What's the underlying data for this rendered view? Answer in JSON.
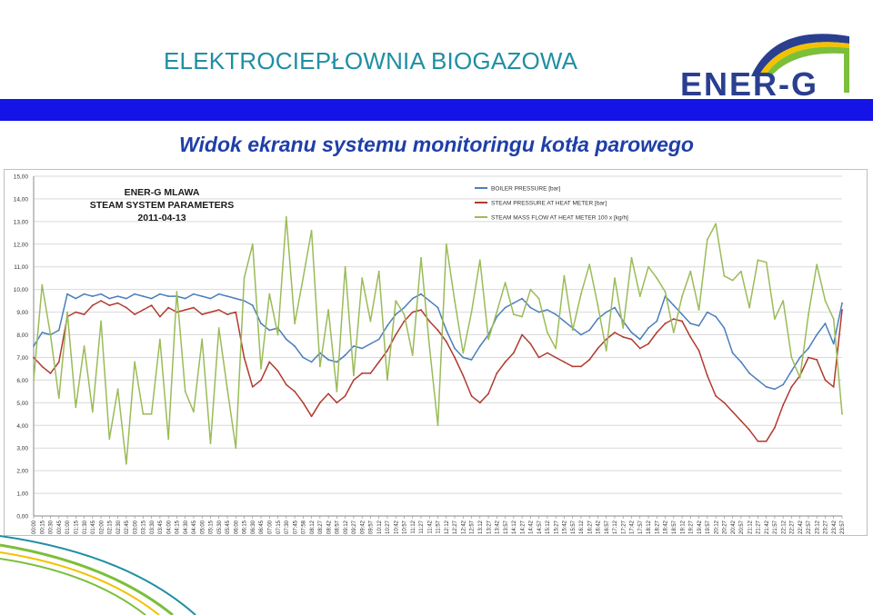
{
  "header": {
    "title": "ELEKTROCIEPŁOWNIA BIOGAZOWA"
  },
  "logo": {
    "text": "ENER-G",
    "arc_colors": [
      "#2a3f8f",
      "#f2c200",
      "#7bbf3a"
    ]
  },
  "subtitle": "Widok ekranu systemu monitoringu kotła parowego",
  "colors": {
    "blue_bar": "#1414e6",
    "series_blue": "#4a7ebb",
    "series_red": "#b03a2e",
    "series_green": "#9bbb59"
  },
  "chart_data": {
    "type": "line",
    "annotation": [
      "ENER-G MLAWA",
      "STEAM SYSTEM PARAMETERS",
      "2011-04-13"
    ],
    "ylim": [
      0,
      15
    ],
    "yticks": [
      "0,00",
      "1,00",
      "2,00",
      "3,00",
      "4,00",
      "5,00",
      "6,00",
      "7,00",
      "8,00",
      "9,00",
      "10,00",
      "11,00",
      "12,00",
      "13,00",
      "14,00",
      "15,00"
    ],
    "legend_position": "top-right",
    "grid": "horizontal",
    "categories": [
      "00:00",
      "00:15",
      "00:30",
      "00:45",
      "01:00",
      "01:15",
      "01:30",
      "01:45",
      "02:00",
      "02:15",
      "02:30",
      "02:45",
      "03:00",
      "03:15",
      "03:30",
      "03:45",
      "04:00",
      "04:15",
      "04:30",
      "04:45",
      "05:00",
      "05:15",
      "05:30",
      "05:45",
      "06:00",
      "06:15",
      "06:30",
      "06:45",
      "07:00",
      "07:15",
      "07:30",
      "07:45",
      "07:58",
      "08:12",
      "08:27",
      "08:42",
      "08:57",
      "09:12",
      "09:27",
      "09:42",
      "09:57",
      "10:12",
      "10:27",
      "10:42",
      "10:57",
      "11:12",
      "11:27",
      "11:42",
      "11:57",
      "12:12",
      "12:27",
      "12:42",
      "12:57",
      "13:12",
      "13:27",
      "13:42",
      "13:57",
      "14:12",
      "14:27",
      "14:42",
      "14:57",
      "15:12",
      "15:27",
      "15:42",
      "15:57",
      "16:12",
      "16:27",
      "16:42",
      "16:57",
      "17:12",
      "17:27",
      "17:42",
      "17:57",
      "18:12",
      "18:27",
      "18:42",
      "18:57",
      "19:12",
      "19:27",
      "19:42",
      "19:57",
      "20:12",
      "20:27",
      "20:42",
      "20:57",
      "21:12",
      "21:27",
      "21:42",
      "21:57",
      "22:12",
      "22:27",
      "22:42",
      "22:57",
      "23:12",
      "23:27",
      "23:42",
      "23:57"
    ],
    "series": [
      {
        "name": "BOILER PRESSURE [bar]",
        "color": "#4a7ebb",
        "values": [
          7.5,
          8.1,
          8.0,
          8.2,
          9.8,
          9.6,
          9.8,
          9.7,
          9.8,
          9.6,
          9.7,
          9.6,
          9.8,
          9.7,
          9.6,
          9.8,
          9.7,
          9.7,
          9.6,
          9.8,
          9.7,
          9.6,
          9.8,
          9.7,
          9.6,
          9.5,
          9.3,
          8.5,
          8.2,
          8.3,
          7.8,
          7.5,
          7.0,
          6.8,
          7.2,
          6.9,
          6.8,
          7.1,
          7.5,
          7.4,
          7.6,
          7.8,
          8.4,
          8.9,
          9.2,
          9.6,
          9.8,
          9.5,
          9.2,
          8.2,
          7.4,
          7.0,
          6.9,
          7.5,
          8.0,
          8.8,
          9.2,
          9.4,
          9.6,
          9.2,
          9.0,
          9.1,
          8.9,
          8.6,
          8.3,
          8.0,
          8.2,
          8.7,
          9.0,
          9.2,
          8.6,
          8.1,
          7.8,
          8.3,
          8.6,
          9.7,
          9.3,
          8.9,
          8.5,
          8.4,
          9.0,
          8.8,
          8.3,
          7.2,
          6.8,
          6.3,
          6.0,
          5.7,
          5.6,
          5.8,
          6.4,
          7.0,
          7.4,
          8.0,
          8.5,
          7.6,
          9.4
        ]
      },
      {
        "name": "STEAM PRESSURE AT HEAT METER [bar]",
        "color": "#b03a2e",
        "values": [
          7.0,
          6.6,
          6.3,
          6.8,
          8.8,
          9.0,
          8.9,
          9.3,
          9.5,
          9.3,
          9.4,
          9.2,
          8.9,
          9.1,
          9.3,
          8.8,
          9.2,
          9.0,
          9.1,
          9.2,
          8.9,
          9.0,
          9.1,
          8.9,
          9.0,
          7.0,
          5.7,
          6.0,
          6.8,
          6.4,
          5.8,
          5.5,
          5.0,
          4.4,
          5.0,
          5.4,
          5.0,
          5.3,
          6.0,
          6.3,
          6.3,
          6.8,
          7.3,
          8.0,
          8.6,
          9.0,
          9.1,
          8.6,
          8.2,
          7.7,
          7.0,
          6.2,
          5.3,
          5.0,
          5.4,
          6.3,
          6.8,
          7.2,
          8.0,
          7.6,
          7.0,
          7.2,
          7.0,
          6.8,
          6.6,
          6.6,
          6.9,
          7.4,
          7.8,
          8.1,
          7.9,
          7.8,
          7.4,
          7.6,
          8.1,
          8.5,
          8.7,
          8.6,
          7.9,
          7.3,
          6.2,
          5.3,
          5.0,
          4.6,
          4.2,
          3.8,
          3.3,
          3.3,
          3.9,
          4.9,
          5.7,
          6.2,
          7.0,
          6.9,
          6.0,
          5.7,
          9.1
        ]
      },
      {
        "name": "STEAM MASS FLOW AT HEAT METER 100 x [kg/h]",
        "color": "#9bbb59",
        "values": [
          6.0,
          10.2,
          8.0,
          5.2,
          9.0,
          4.8,
          7.5,
          4.6,
          8.6,
          3.4,
          5.6,
          2.3,
          6.8,
          4.5,
          4.5,
          7.8,
          3.4,
          9.9,
          5.5,
          4.6,
          7.8,
          3.2,
          8.3,
          5.6,
          3.0,
          10.5,
          12.0,
          6.5,
          9.8,
          8.0,
          13.2,
          8.5,
          10.5,
          12.6,
          6.6,
          9.1,
          5.5,
          11.0,
          6.2,
          10.5,
          8.6,
          10.8,
          6.0,
          9.5,
          8.9,
          7.1,
          11.4,
          7.5,
          4.0,
          12.0,
          9.5,
          7.2,
          9.0,
          11.3,
          7.8,
          9.0,
          10.3,
          8.9,
          8.8,
          10.0,
          9.6,
          8.1,
          7.4,
          10.6,
          8.2,
          9.8,
          11.1,
          9.3,
          7.3,
          10.5,
          8.3,
          11.4,
          9.7,
          11.0,
          10.5,
          9.9,
          8.1,
          9.7,
          10.8,
          9.1,
          12.2,
          12.9,
          10.6,
          10.4,
          10.8,
          9.2,
          11.3,
          11.2,
          8.7,
          9.5,
          7.0,
          6.1,
          8.9,
          11.1,
          9.5,
          8.7,
          4.5
        ]
      }
    ]
  }
}
